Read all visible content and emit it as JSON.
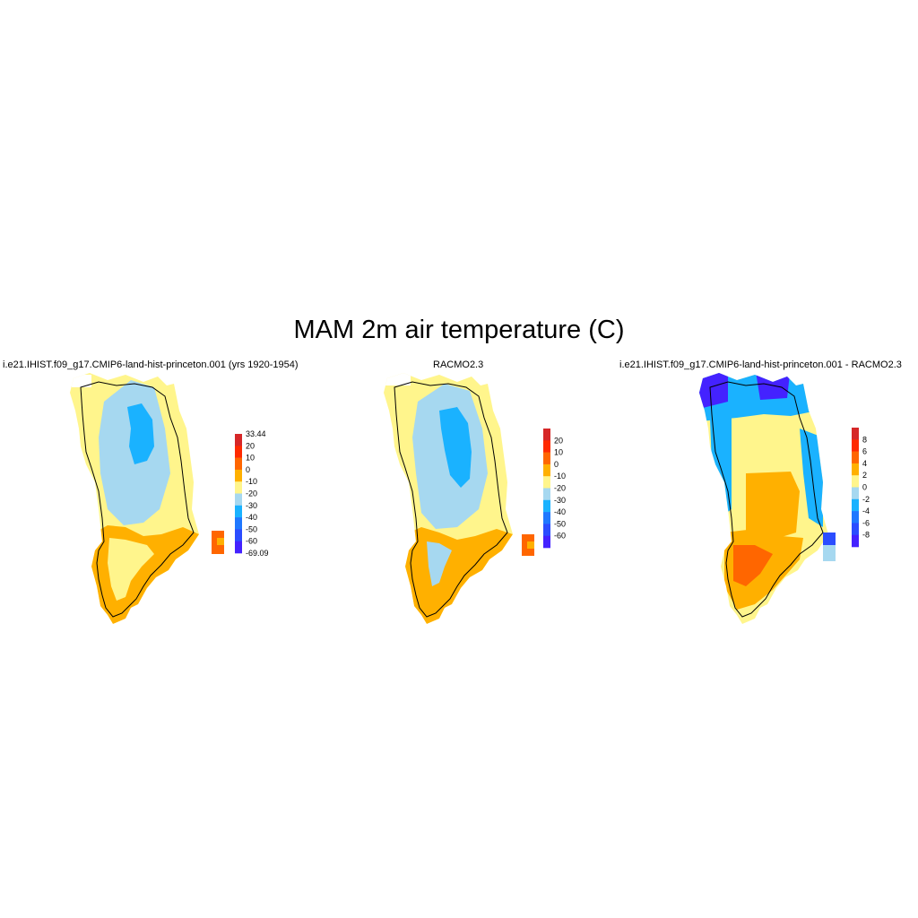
{
  "figure": {
    "title": "MAM 2m air temperature (C)"
  },
  "panels": [
    {
      "id": "model",
      "title": "i.e21.IHIST.f09_g17.CMIP6-land-hist-princeton.001 (yrs 1920-1954)",
      "colorbar": {
        "labels": [
          "33.44",
          "20",
          "10",
          "0",
          "-10",
          "-20",
          "-30",
          "-40",
          "-50",
          "-60",
          "-69.09"
        ],
        "colors": [
          "#d62728",
          "#ff2a00",
          "#ff6600",
          "#ffb000",
          "#fff58c",
          "#a6d8f0",
          "#1ab2ff",
          "#1f78ff",
          "#2b4dff",
          "#4422ff"
        ]
      }
    },
    {
      "id": "racmo",
      "title": "RACMO2.3",
      "colorbar": {
        "labels": [
          "20",
          "10",
          "0",
          "-10",
          "-20",
          "-30",
          "-40",
          "-50",
          "-60"
        ],
        "colors": [
          "#d62728",
          "#ff2a00",
          "#ff6600",
          "#ffb000",
          "#fff58c",
          "#a6d8f0",
          "#1ab2ff",
          "#1f78ff",
          "#2b4dff",
          "#4422ff"
        ]
      }
    },
    {
      "id": "difference",
      "title": "i.e21.IHIST.f09_g17.CMIP6-land-hist-princeton.001 - RACMO2.3",
      "colorbar": {
        "labels": [
          "8",
          "6",
          "4",
          "2",
          "0",
          "-2",
          "-4",
          "-6",
          "-8"
        ],
        "colors": [
          "#d62728",
          "#ff2a00",
          "#ff6600",
          "#ffb000",
          "#fff58c",
          "#a6d8f0",
          "#1ab2ff",
          "#1f78ff",
          "#2b4dff",
          "#4422ff"
        ]
      }
    }
  ]
}
